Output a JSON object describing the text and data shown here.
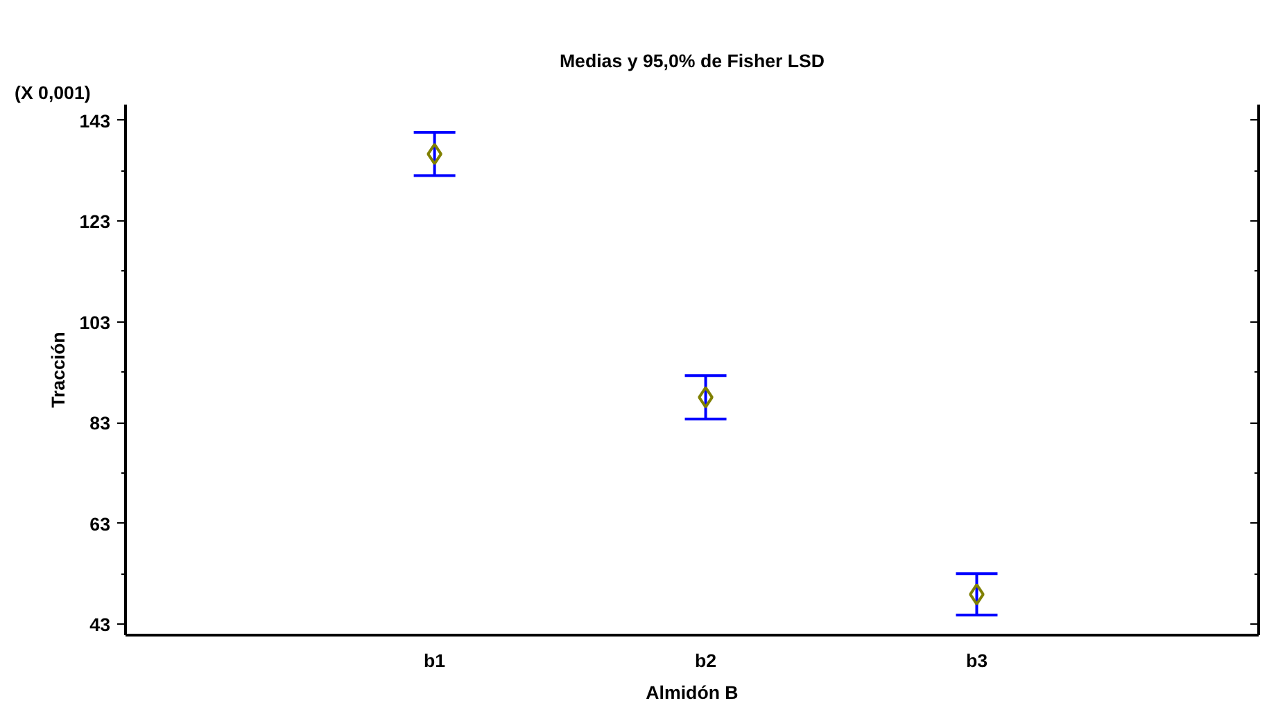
{
  "chart_data": {
    "type": "scatter",
    "title": "Medias y 95,0% de Fisher LSD",
    "xlabel": "Almidón B",
    "ylabel": "Tracción",
    "annotations": [
      "(X 0,001)"
    ],
    "categories": [
      "b1",
      "b2",
      "b3"
    ],
    "series": [
      {
        "color": "#808000",
        "values": [
          136.3,
          88.0,
          48.9
        ],
        "errors": [
          4.3,
          4.3,
          4.1
        ]
      }
    ],
    "ylim": [
      40.8,
      146.1
    ],
    "yticks": [
      43,
      63,
      83,
      103,
      123,
      143
    ],
    "grid": false,
    "marker": "diamond"
  }
}
